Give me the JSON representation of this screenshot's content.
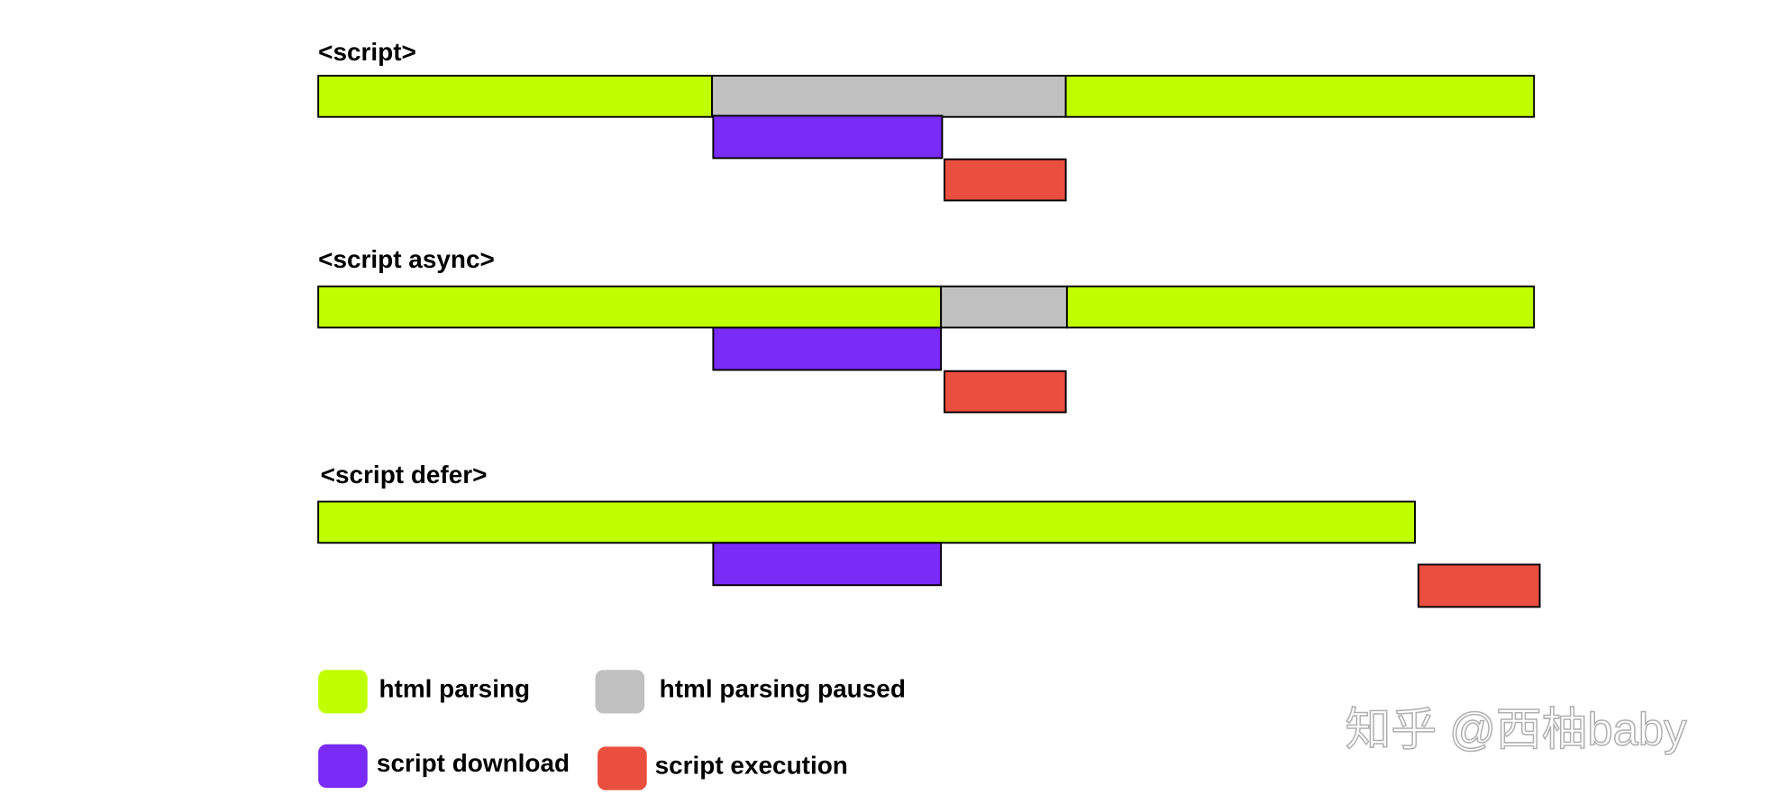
{
  "sections": [
    {
      "title": "<script>"
    },
    {
      "title": "<script async>"
    },
    {
      "title": "<script defer>"
    }
  ],
  "legend": [
    {
      "label": "html parsing"
    },
    {
      "label": "html parsing paused"
    },
    {
      "label": "script download"
    },
    {
      "label": "script execution"
    }
  ],
  "watermark": "知乎 @西柚baby"
}
